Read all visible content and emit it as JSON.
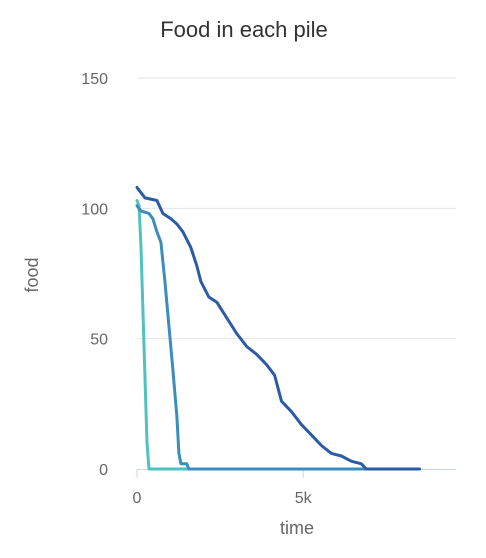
{
  "chart_data": {
    "type": "line",
    "title": "Food in each pile",
    "xlabel": "time",
    "ylabel": "food",
    "xlim": [
      0,
      9600
    ],
    "ylim": [
      0,
      150
    ],
    "xticks": [
      {
        "value": 0,
        "label": "0"
      },
      {
        "value": 5000,
        "label": "5k"
      }
    ],
    "yticks": [
      {
        "value": 0,
        "label": "0"
      },
      {
        "value": 50,
        "label": "50"
      },
      {
        "value": 100,
        "label": "100"
      },
      {
        "value": 150,
        "label": "150"
      }
    ],
    "grid": true,
    "series": [
      {
        "color": "#4fc2c0",
        "points": [
          [
            0,
            103
          ],
          [
            60,
            101
          ],
          [
            120,
            85
          ],
          [
            180,
            60
          ],
          [
            240,
            35
          ],
          [
            300,
            10
          ],
          [
            360,
            0
          ],
          [
            8500,
            0
          ]
        ]
      },
      {
        "color": "#3a8dbd",
        "points": [
          [
            0,
            101
          ],
          [
            120,
            99
          ],
          [
            360,
            98
          ],
          [
            480,
            96
          ],
          [
            600,
            91
          ],
          [
            720,
            87
          ],
          [
            840,
            72
          ],
          [
            960,
            55
          ],
          [
            1080,
            38
          ],
          [
            1200,
            20
          ],
          [
            1260,
            6
          ],
          [
            1320,
            2
          ],
          [
            1500,
            2
          ],
          [
            1560,
            0
          ],
          [
            8500,
            0
          ]
        ]
      },
      {
        "color": "#2c5ba6",
        "points": [
          [
            0,
            108
          ],
          [
            120,
            106
          ],
          [
            240,
            104
          ],
          [
            600,
            103
          ],
          [
            780,
            98
          ],
          [
            1020,
            96
          ],
          [
            1200,
            94
          ],
          [
            1380,
            91
          ],
          [
            1620,
            85
          ],
          [
            1800,
            78
          ],
          [
            1920,
            72
          ],
          [
            2160,
            66
          ],
          [
            2400,
            64
          ],
          [
            2700,
            58
          ],
          [
            3000,
            52
          ],
          [
            3300,
            47
          ],
          [
            3600,
            44
          ],
          [
            3900,
            40
          ],
          [
            4140,
            36
          ],
          [
            4350,
            26
          ],
          [
            4650,
            22
          ],
          [
            4950,
            17
          ],
          [
            5250,
            13
          ],
          [
            5550,
            9
          ],
          [
            5850,
            6
          ],
          [
            6150,
            5
          ],
          [
            6450,
            3
          ],
          [
            6750,
            2
          ],
          [
            6900,
            0
          ],
          [
            8500,
            0
          ]
        ]
      }
    ]
  }
}
